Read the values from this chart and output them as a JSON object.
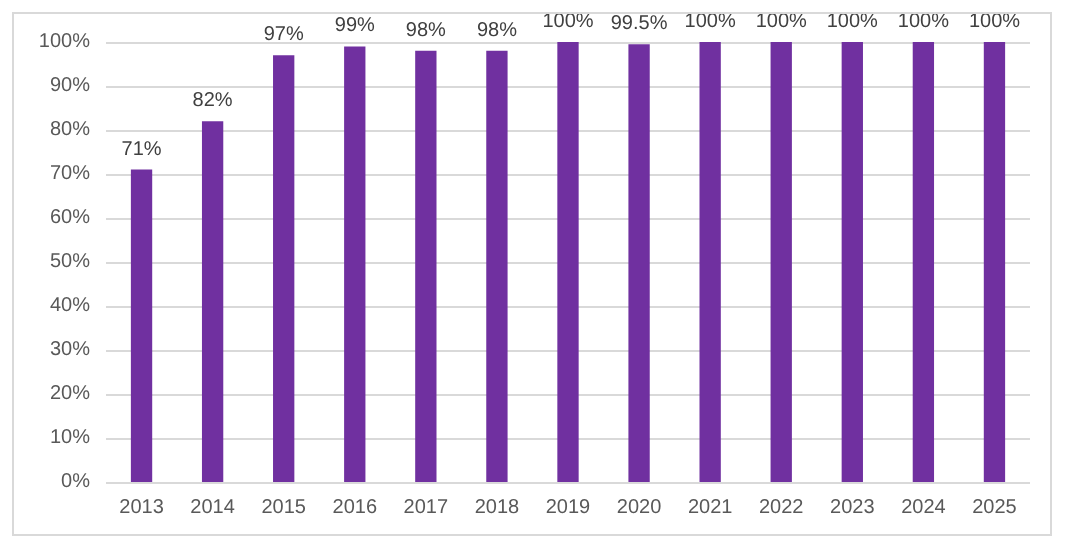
{
  "chart_data": {
    "type": "bar",
    "categories": [
      "2013",
      "2014",
      "2015",
      "2016",
      "2017",
      "2018",
      "2019",
      "2020",
      "2021",
      "2022",
      "2023",
      "2024",
      "2025"
    ],
    "values": [
      71,
      82,
      97,
      99,
      98,
      98,
      100,
      99.5,
      100,
      100,
      100,
      100,
      100
    ],
    "value_labels": [
      "71%",
      "82%",
      "97%",
      "99%",
      "98%",
      "98%",
      "100%",
      "99.5%",
      "100%",
      "100%",
      "100%",
      "100%",
      "100%"
    ],
    "color": "#7030a0",
    "ylim": [
      0,
      100
    ],
    "yticks": [
      {
        "value": 0,
        "label": "0%"
      },
      {
        "value": 10,
        "label": "10%"
      },
      {
        "value": 20,
        "label": "20%"
      },
      {
        "value": 30,
        "label": "30%"
      },
      {
        "value": 40,
        "label": "40%"
      },
      {
        "value": 50,
        "label": "50%"
      },
      {
        "value": 60,
        "label": "60%"
      },
      {
        "value": 70,
        "label": "70%"
      },
      {
        "value": 80,
        "label": "80%"
      },
      {
        "value": 90,
        "label": "90%"
      },
      {
        "value": 100,
        "label": "100%"
      }
    ],
    "grid": "y"
  }
}
